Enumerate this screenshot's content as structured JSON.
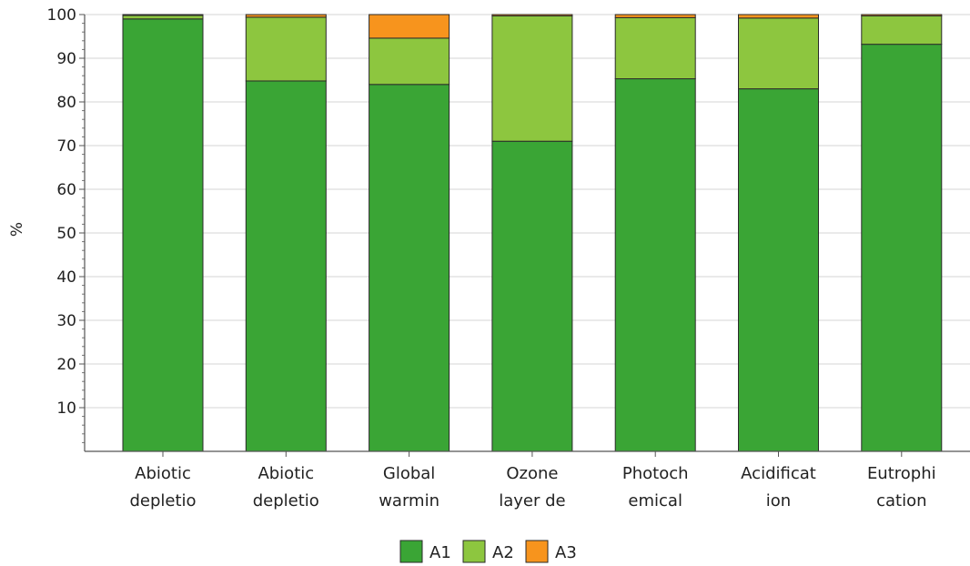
{
  "chart_data": {
    "type": "bar",
    "stacked": true,
    "ylabel": "%",
    "ylim": [
      0,
      100
    ],
    "yticks": [
      10,
      20,
      30,
      40,
      50,
      60,
      70,
      80,
      90,
      100
    ],
    "grid": true,
    "legend_position": "bottom",
    "categories": [
      [
        "Abiotic",
        "depletio"
      ],
      [
        "Abiotic",
        "depletio"
      ],
      [
        "Global",
        "warmin"
      ],
      [
        "Ozone",
        "layer de"
      ],
      [
        "Photoch",
        "emical"
      ],
      [
        "Acidificat",
        "ion"
      ],
      [
        "Eutrophi",
        "cation"
      ]
    ],
    "series": [
      {
        "name": "A1",
        "color": "#3aa535",
        "values": [
          99.0,
          84.8,
          84.0,
          71.0,
          85.3,
          83.0,
          93.2
        ]
      },
      {
        "name": "A2",
        "color": "#8dc63f",
        "values": [
          0.8,
          14.6,
          10.6,
          28.7,
          14.0,
          16.2,
          6.5
        ]
      },
      {
        "name": "A3",
        "color": "#f7941d",
        "values": [
          0.2,
          0.6,
          5.4,
          0.3,
          0.7,
          0.8,
          0.3
        ]
      }
    ]
  }
}
